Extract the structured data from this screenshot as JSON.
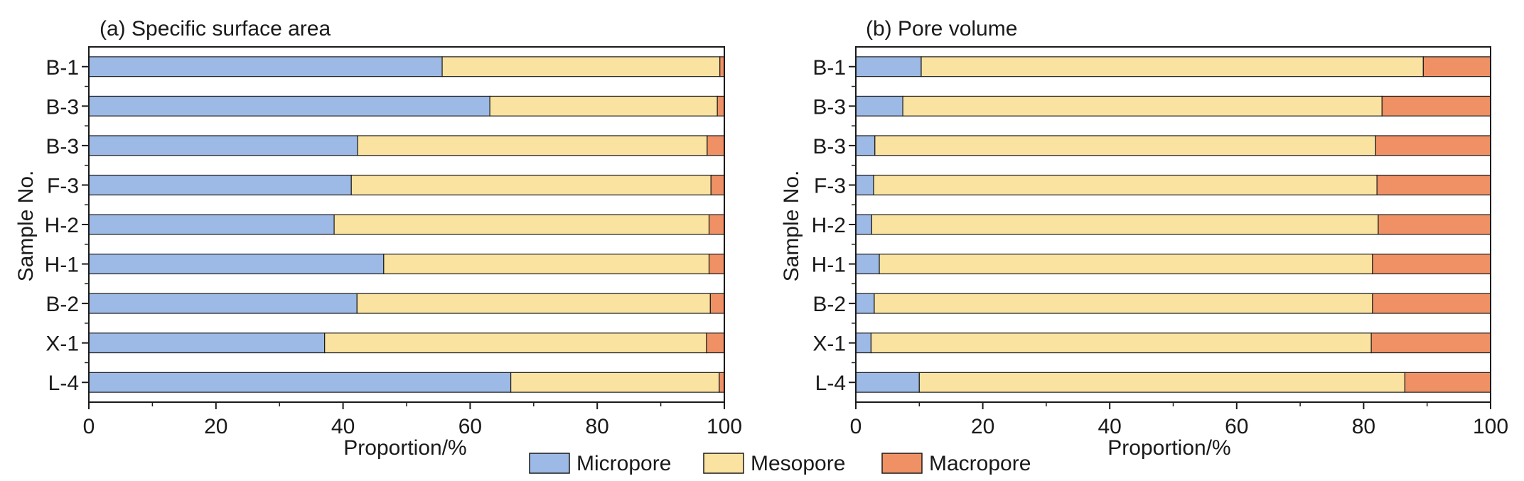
{
  "colors": {
    "micropore": "#9db9e5",
    "mesopore": "#fae3a0",
    "macropore": "#ef9165",
    "stroke": "#1a1a1a"
  },
  "legend": {
    "placement": "bottom-center",
    "items": [
      "Micropore",
      "Mesopore",
      "Macropore"
    ]
  },
  "chart_data": [
    {
      "type": "bar",
      "orientation": "horizontal",
      "stacked": true,
      "title": "(a) Specific surface area",
      "xlabel": "Proportion/%",
      "ylabel": "Sample No.",
      "xlim": [
        0,
        100
      ],
      "xticks": [
        0,
        20,
        40,
        60,
        80,
        100
      ],
      "grid": false,
      "categories": [
        "B-1",
        "B-3",
        "B-3",
        "F-3",
        "H-2",
        "H-1",
        "B-2",
        "X-1",
        "L-4"
      ],
      "series": [
        {
          "name": "Micropore",
          "values": [
            55.6,
            63.1,
            42.3,
            41.3,
            38.6,
            46.4,
            42.2,
            37.1,
            66.4
          ]
        },
        {
          "name": "Mesopore",
          "values": [
            43.7,
            35.8,
            55.0,
            56.6,
            59.0,
            51.2,
            55.6,
            60.1,
            32.8
          ]
        },
        {
          "name": "Macropore",
          "values": [
            0.7,
            1.1,
            2.7,
            2.1,
            2.4,
            2.4,
            2.2,
            2.8,
            0.8
          ]
        }
      ]
    },
    {
      "type": "bar",
      "orientation": "horizontal",
      "stacked": true,
      "title": "(b) Pore volume",
      "xlabel": "Proportion/%",
      "ylabel": "Sample No.",
      "xlim": [
        0,
        100
      ],
      "xticks": [
        0,
        20,
        40,
        60,
        80,
        100
      ],
      "grid": false,
      "categories": [
        "B-1",
        "B-3",
        "B-3",
        "F-3",
        "H-2",
        "H-1",
        "B-2",
        "X-1",
        "L-4"
      ],
      "series": [
        {
          "name": "Micropore",
          "values": [
            10.3,
            7.4,
            3.0,
            2.8,
            2.5,
            3.7,
            2.9,
            2.4,
            10.0
          ]
        },
        {
          "name": "Mesopore",
          "values": [
            79.1,
            75.5,
            78.9,
            79.3,
            79.8,
            77.7,
            78.5,
            78.8,
            76.5
          ]
        },
        {
          "name": "Macropore",
          "values": [
            10.6,
            17.1,
            18.1,
            17.9,
            17.7,
            18.6,
            18.6,
            18.8,
            13.5
          ]
        }
      ]
    }
  ]
}
